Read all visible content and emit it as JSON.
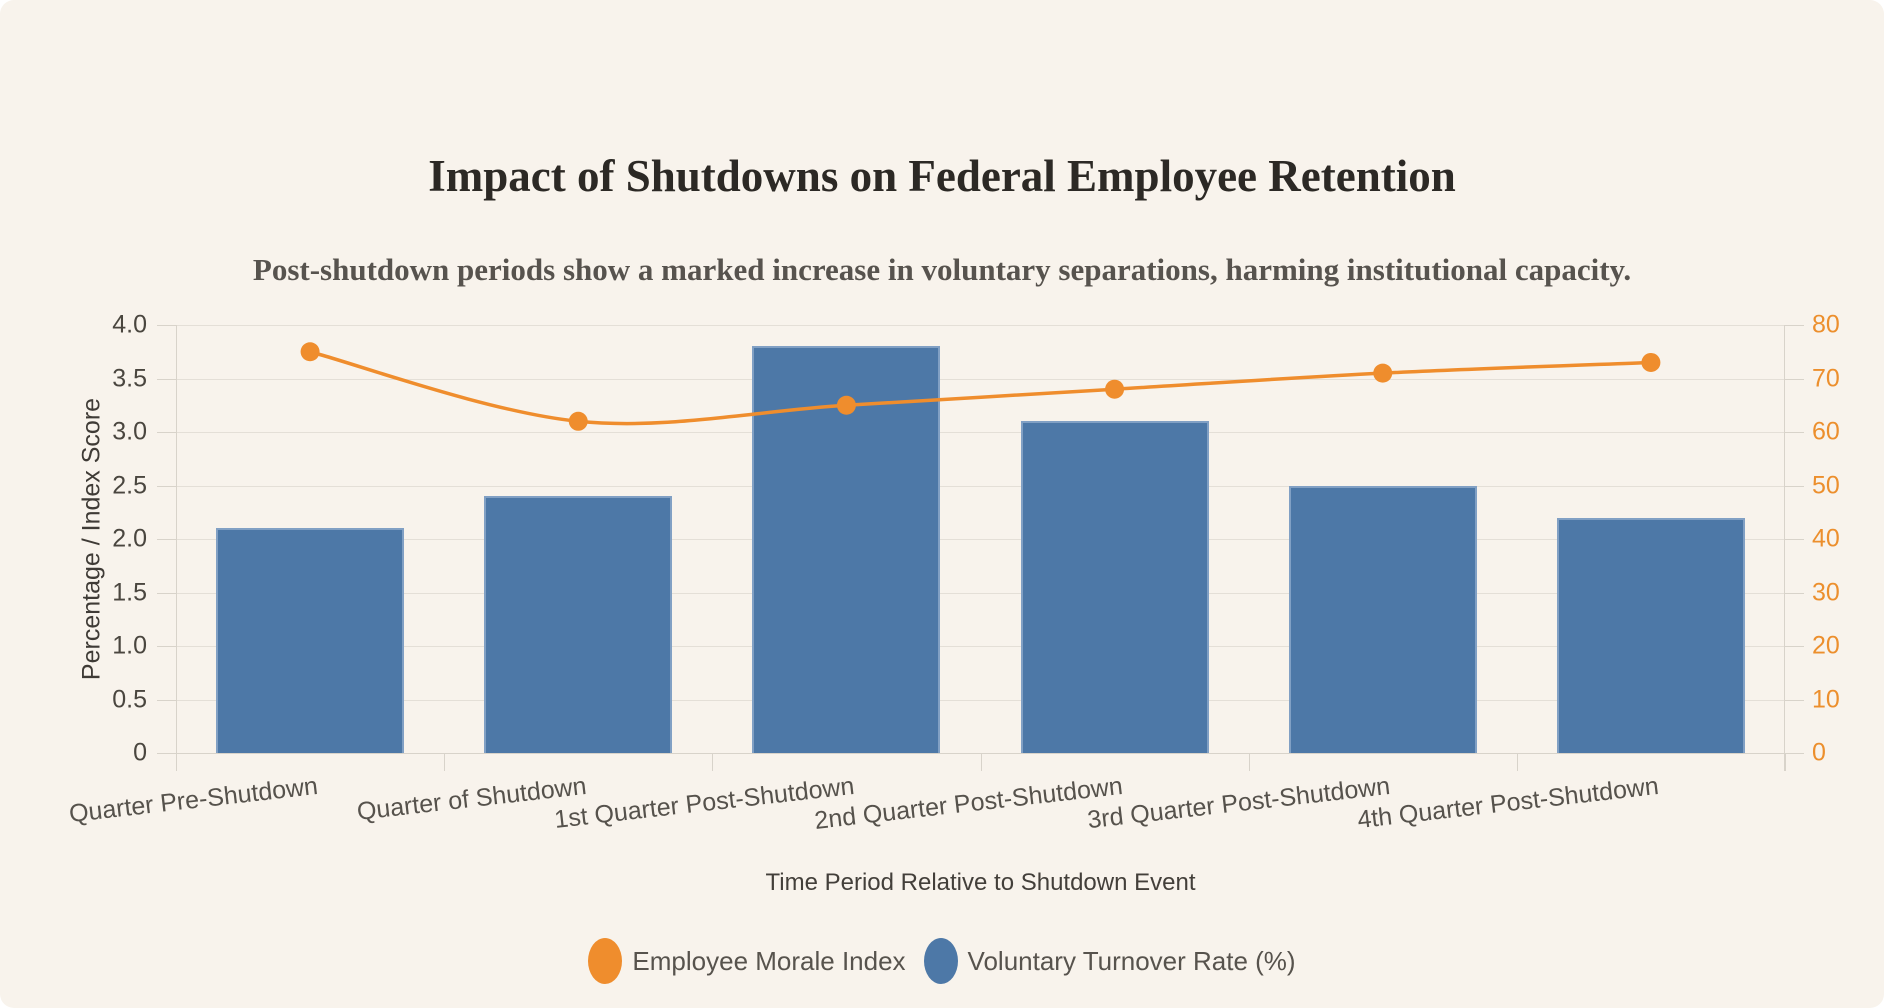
{
  "page": {
    "background": "#f8f3ec"
  },
  "header": {
    "title": "Impact of Shutdowns on Federal Employee Retention",
    "subtitle": "Post-shutdown periods show a marked increase in voluntary separations, harming institutional capacity."
  },
  "chart_data": {
    "type": "bar",
    "title": "Impact of Shutdowns on Federal Employee Retention",
    "subtitle": "Post-shutdown periods show a marked increase in voluntary separations, harming institutional capacity.",
    "categories": [
      "Quarter Pre-Shutdown",
      "Quarter of Shutdown",
      "1st Quarter Post-Shutdown",
      "2nd Quarter Post-Shutdown",
      "3rd Quarter Post-Shutdown",
      "4th Quarter Post-Shutdown"
    ],
    "series": [
      {
        "name": "Employee Morale Index",
        "type": "line",
        "axis": "right",
        "color": "#ef8d2d",
        "values": [
          75,
          62,
          65,
          68,
          71,
          73
        ]
      },
      {
        "name": "Voluntary Turnover Rate (%)",
        "type": "bar",
        "axis": "left",
        "color": "#4d78a7",
        "border_color": "#81a0c4",
        "values": [
          2.1,
          2.4,
          3.8,
          3.1,
          2.5,
          2.2
        ]
      }
    ],
    "xlabel": "Time Period Relative to Shutdown Event",
    "ylabel_left": "Percentage / Index Score",
    "y_axis_left": {
      "min": 0,
      "max": 4,
      "step": 0.5,
      "tick_labels": [
        "0",
        "0.5",
        "1.0",
        "1.5",
        "2.0",
        "2.5",
        "3.0",
        "3.5",
        "4.0"
      ],
      "label_color": "#4a463f"
    },
    "y_axis_right": {
      "min": 0,
      "max": 80,
      "step": 10,
      "tick_labels": [
        "0",
        "10",
        "20",
        "30",
        "40",
        "50",
        "60",
        "70",
        "80"
      ],
      "label_color": "#ec8f2d"
    },
    "grid": true,
    "legend_position": "bottom",
    "legend": [
      {
        "label": "Employee Morale Index",
        "color": "#ef8d2d"
      },
      {
        "label": "Voluntary Turnover Rate (%)",
        "color": "#4d78a7"
      }
    ]
  }
}
